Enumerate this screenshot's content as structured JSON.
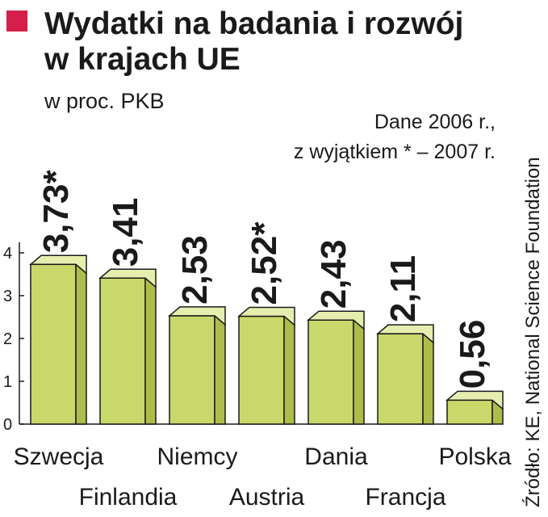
{
  "header": {
    "title_line1": "Wydatki na badania i rozwój",
    "title_line2": "w krajach UE",
    "subtitle": "w proc. PKB",
    "note_line1": "Dane 2006 r.,",
    "note_line2": "z wyjątkiem * – 2007 r.",
    "source": "Źródło: KE, National Science Foundation"
  },
  "colors": {
    "marker": "#d41f4a",
    "bar_front": "#c9d86a",
    "bar_top": "#e6eeaf",
    "bar_side": "#aebd4a",
    "bar_outline": "#1a1a1a",
    "highlight_label": "#c8163d",
    "label": "#1a1a1a"
  },
  "chart_data": {
    "type": "bar",
    "title": "Wydatki na badania i rozwój w krajach UE",
    "subtitle": "w proc. PKB",
    "categories": [
      "Szwecja",
      "Finlandia",
      "Niemcy",
      "Austria",
      "Dania",
      "Francja",
      "Polska"
    ],
    "values": [
      3.73,
      3.41,
      2.53,
      2.52,
      2.43,
      2.11,
      0.56
    ],
    "value_labels": [
      "3,73*",
      "3,41",
      "2,53",
      "2,52*",
      "2,43",
      "2,11",
      "0,56"
    ],
    "highlight": [
      "Polska"
    ],
    "ylim": [
      0,
      4
    ],
    "yticks": [
      0,
      1,
      2,
      3,
      4
    ],
    "grid": false,
    "xlabel": "",
    "ylabel": ""
  }
}
